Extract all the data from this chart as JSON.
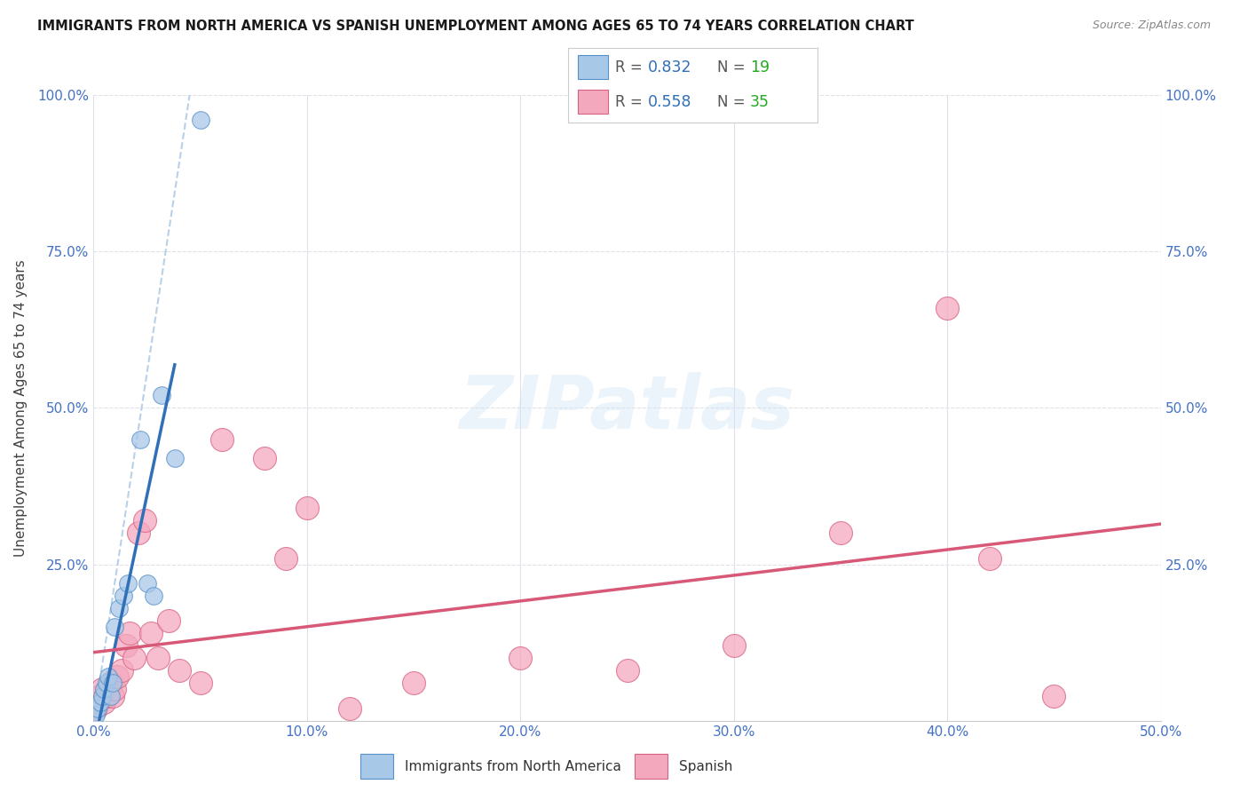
{
  "title": "IMMIGRANTS FROM NORTH AMERICA VS SPANISH UNEMPLOYMENT AMONG AGES 65 TO 74 YEARS CORRELATION CHART",
  "source": "Source: ZipAtlas.com",
  "ylabel": "Unemployment Among Ages 65 to 74 years",
  "xlim": [
    0.0,
    50.0
  ],
  "ylim": [
    0.0,
    100.0
  ],
  "xticks": [
    0.0,
    10.0,
    20.0,
    30.0,
    40.0,
    50.0
  ],
  "yticks": [
    0.0,
    25.0,
    50.0,
    75.0,
    100.0
  ],
  "xtick_labels": [
    "0.0%",
    "10.0%",
    "20.0%",
    "30.0%",
    "40.0%",
    "50.0%"
  ],
  "ytick_labels": [
    "",
    "25.0%",
    "50.0%",
    "75.0%",
    "100.0%"
  ],
  "blue_face_color": "#a8c8e8",
  "blue_edge_color": "#5590c8",
  "pink_face_color": "#f4a8be",
  "pink_edge_color": "#d86080",
  "blue_line_color": "#3070b8",
  "pink_line_color": "#d85878",
  "ref_line_color": "#b8d0e8",
  "tick_color": "#4472c4",
  "label_color": "#404040",
  "grid_color": "#e0e0e8",
  "legend_label_blue": "Immigrants from North America",
  "legend_label_pink": "Spanish",
  "r_blue": "0.832",
  "n_blue": "19",
  "r_pink": "0.558",
  "n_pink": "35",
  "watermark": "ZIPatlas",
  "background_color": "#ffffff",
  "blue_x": [
    0.1,
    0.2,
    0.3,
    0.4,
    0.5,
    0.6,
    0.7,
    0.8,
    0.9,
    1.0,
    1.2,
    1.4,
    1.6,
    2.2,
    2.5,
    2.8,
    3.2,
    3.8,
    5.0
  ],
  "blue_y": [
    1.0,
    2.0,
    3.0,
    4.0,
    5.0,
    6.0,
    7.0,
    4.0,
    6.0,
    15.0,
    18.0,
    20.0,
    22.0,
    45.0,
    22.0,
    20.0,
    52.0,
    42.0,
    96.0
  ],
  "pink_x": [
    0.1,
    0.2,
    0.3,
    0.4,
    0.5,
    0.6,
    0.7,
    0.8,
    0.9,
    1.0,
    1.1,
    1.3,
    1.5,
    1.7,
    1.9,
    2.1,
    2.4,
    2.7,
    3.0,
    3.5,
    4.0,
    5.0,
    6.0,
    8.0,
    9.0,
    10.0,
    12.0,
    15.0,
    20.0,
    25.0,
    30.0,
    35.0,
    40.0,
    42.0,
    45.0
  ],
  "pink_y": [
    2.0,
    3.0,
    4.0,
    5.0,
    3.0,
    4.0,
    5.0,
    6.0,
    4.0,
    5.0,
    7.0,
    8.0,
    12.0,
    14.0,
    10.0,
    30.0,
    32.0,
    14.0,
    10.0,
    16.0,
    8.0,
    6.0,
    45.0,
    42.0,
    26.0,
    34.0,
    2.0,
    6.0,
    10.0,
    8.0,
    12.0,
    30.0,
    66.0,
    26.0,
    4.0
  ],
  "blue_scatter_size": 200,
  "pink_scatter_size": 350,
  "blue_reg_x0": 0.0,
  "blue_reg_x1": 3.8,
  "pink_reg_x0": 0.0,
  "pink_reg_x1": 50.0,
  "ref_line_x0": 0.5,
  "ref_line_x1": 5.0,
  "ref_line_y0": 0.0,
  "ref_line_y1": 100.0
}
